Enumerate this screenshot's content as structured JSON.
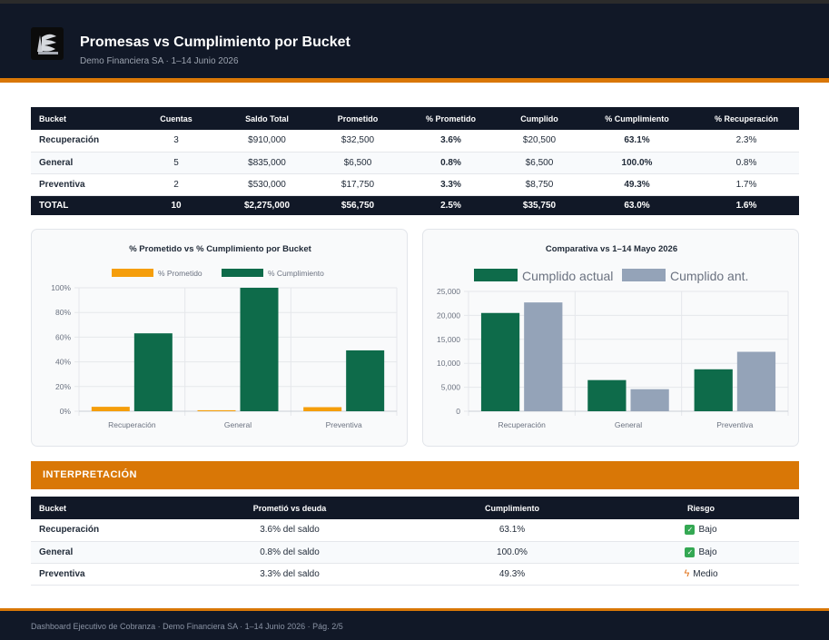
{
  "header": {
    "title": "Promesas vs Cumplimiento por Bucket",
    "subtitle": "Demo Financiera SA  ·  1–14 Junio 2026",
    "logo_icon": "scales-logo-icon",
    "bg_color": "#111827",
    "accent_color": "#d97706"
  },
  "summary_table": {
    "columns": [
      "Bucket",
      "Cuentas",
      "Saldo Total",
      "Prometido",
      "% Prometido",
      "Cumplido",
      "% Cumplimiento",
      "% Recuperación"
    ],
    "rows": [
      [
        "Recuperación",
        "3",
        "$910,000",
        "$32,500",
        "3.6%",
        "$20,500",
        "63.1%",
        "2.3%"
      ],
      [
        "General",
        "5",
        "$835,000",
        "$6,500",
        "0.8%",
        "$6,500",
        "100.0%",
        "0.8%"
      ],
      [
        "Preventiva",
        "2",
        "$530,000",
        "$17,750",
        "3.3%",
        "$8,750",
        "49.3%",
        "1.7%"
      ]
    ],
    "total": [
      "TOTAL",
      "10",
      "$2,275,000",
      "$56,750",
      "2.5%",
      "$35,750",
      "63.0%",
      "1.6%"
    ],
    "cumplimiento_colors": [
      "#0f6b46",
      "#0f6b46",
      "#e06d10"
    ]
  },
  "chart_data": [
    {
      "type": "bar",
      "title": "% Prometido vs % Cumplimiento por Bucket",
      "categories": [
        "Recuperación",
        "General",
        "Preventiva"
      ],
      "series": [
        {
          "name": "% Prometido",
          "values": [
            3.6,
            0.8,
            3.3
          ],
          "color": "#f59e0b"
        },
        {
          "name": "% Cumplimiento",
          "values": [
            63.1,
            100,
            49.3
          ],
          "color": "#0e6b4a"
        }
      ],
      "ylim": [
        0,
        100
      ],
      "yticks": [
        0,
        20,
        40,
        60,
        80,
        100
      ],
      "ytick_labels": [
        "0%",
        "20%",
        "40%",
        "60%",
        "80%",
        "100%"
      ],
      "legend": "top",
      "grid": true
    },
    {
      "type": "bar",
      "title": "Comparativa vs 1–14 Mayo 2026",
      "categories": [
        "Recuperación",
        "General",
        "Preventiva"
      ],
      "series": [
        {
          "name": "Cumplido actual",
          "values": [
            20500,
            6500,
            8750
          ],
          "color": "#0e6b4a"
        },
        {
          "name": "Cumplido ant.",
          "values": [
            22700,
            4600,
            12400
          ],
          "color": "#94a3b8"
        }
      ],
      "ylim": [
        0,
        25000
      ],
      "yticks": [
        0,
        5000,
        10000,
        15000,
        20000,
        25000
      ],
      "ytick_labels": [
        "0",
        "5,000",
        "10,000",
        "15,000",
        "20,000",
        "25,000"
      ],
      "legend": "top",
      "grid": true
    }
  ],
  "interpretation": {
    "title": "INTERPRETACIÓN",
    "columns": [
      "Bucket",
      "Prometió vs deuda",
      "Cumplimiento",
      "Riesgo"
    ],
    "rows": [
      {
        "bucket": "Recuperación",
        "promised": "3.6% del saldo",
        "compliance": "63.1%",
        "risk": "Bajo",
        "risk_icon": "check-icon"
      },
      {
        "bucket": "General",
        "promised": "0.8% del saldo",
        "compliance": "100.0%",
        "risk": "Bajo",
        "risk_icon": "check-icon"
      },
      {
        "bucket": "Preventiva",
        "promised": "3.3% del saldo",
        "compliance": "49.3%",
        "risk": "Medio",
        "risk_icon": "bolt-icon"
      }
    ]
  },
  "footer": {
    "text": "Dashboard Ejecutivo de Cobranza  ·  Demo Financiera SA  ·  1–14 Junio 2026  ·  Pág. 2/5"
  }
}
